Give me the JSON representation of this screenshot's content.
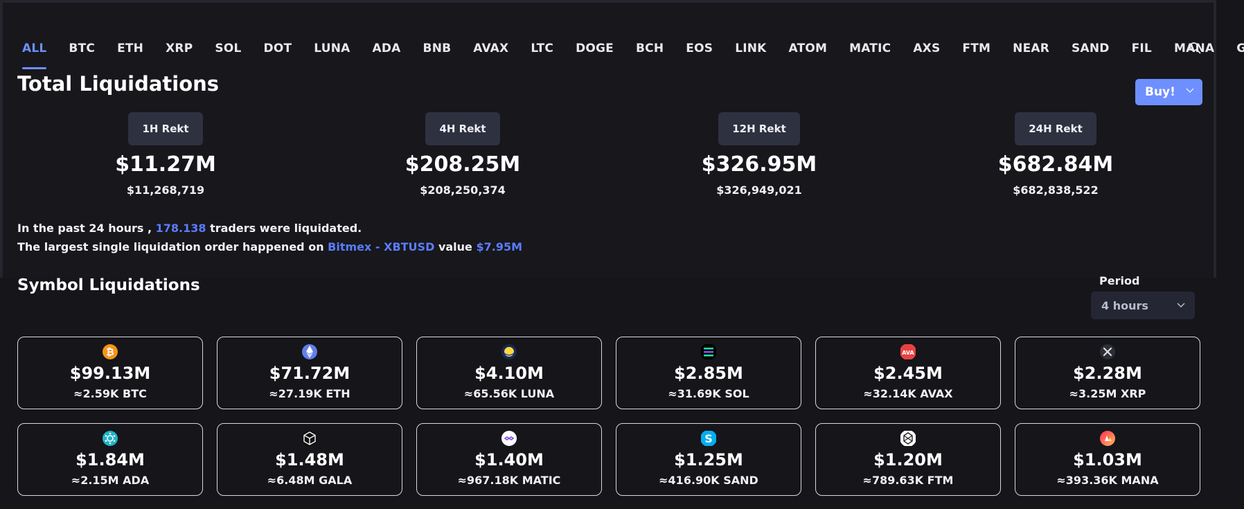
{
  "tabs": [
    "ALL",
    "BTC",
    "ETH",
    "XRP",
    "SOL",
    "DOT",
    "LUNA",
    "ADA",
    "BNB",
    "AVAX",
    "LTC",
    "DOGE",
    "BCH",
    "EOS",
    "LINK",
    "ATOM",
    "MATIC",
    "AXS",
    "FTM",
    "NEAR",
    "SAND",
    "FIL",
    "MANA",
    "GALA"
  ],
  "active_tab": "ALL",
  "total": {
    "title": "Total Liquidations",
    "buy_label": "Buy!",
    "stats": [
      {
        "label": "1H Rekt",
        "short": "$11.27M",
        "full": "$11,268,719"
      },
      {
        "label": "4H Rekt",
        "short": "$208.25M",
        "full": "$208,250,374"
      },
      {
        "label": "12H Rekt",
        "short": "$326.95M",
        "full": "$326,949,021"
      },
      {
        "label": "24H Rekt",
        "short": "$682.84M",
        "full": "$682,838,522"
      }
    ]
  },
  "info": {
    "line1_prefix": "In the past 24 hours ,",
    "traders": "178.138",
    "line1_suffix": "traders were liquidated.",
    "line2_prefix": "The largest single liquidation order happened on",
    "exchange": "Bitmex - XBTUSD",
    "value_word": "value",
    "value": "$7.95M"
  },
  "symbol": {
    "title": "Symbol Liquidations",
    "period_label": "Period",
    "period_value": "4 hours",
    "cards": [
      {
        "icon": "btc-icon",
        "color": "#f7931a",
        "usd": "$99.13M",
        "amount": "≈2.59K BTC"
      },
      {
        "icon": "eth-icon",
        "color": "#627eea",
        "usd": "$71.72M",
        "amount": "≈27.19K ETH"
      },
      {
        "icon": "luna-icon",
        "color": "#172852",
        "usd": "$4.10M",
        "amount": "≈65.56K LUNA"
      },
      {
        "icon": "sol-icon",
        "color": "#000000",
        "usd": "$2.85M",
        "amount": "≈31.69K SOL"
      },
      {
        "icon": "avax-icon",
        "color": "#e84142",
        "usd": "$2.45M",
        "amount": "≈32.14K AVAX"
      },
      {
        "icon": "xrp-icon",
        "color": "#23292f",
        "usd": "$2.28M",
        "amount": "≈3.25M XRP"
      },
      {
        "icon": "ada-icon",
        "color": "#1fb3c6",
        "usd": "$1.84M",
        "amount": "≈2.15M ADA"
      },
      {
        "icon": "gala-icon",
        "color": "#111111",
        "usd": "$1.48M",
        "amount": "≈6.48M GALA"
      },
      {
        "icon": "matic-icon",
        "color": "#ffffff",
        "usd": "$1.40M",
        "amount": "≈967.18K MATIC"
      },
      {
        "icon": "sand-icon",
        "color": "#04adef",
        "usd": "$1.25M",
        "amount": "≈416.90K SAND"
      },
      {
        "icon": "ftm-icon",
        "color": "#ffffff",
        "usd": "$1.20M",
        "amount": "≈789.63K FTM"
      },
      {
        "icon": "mana-icon",
        "color": "#ff2d55",
        "usd": "$1.03M",
        "amount": "≈393.36K MANA"
      }
    ]
  }
}
